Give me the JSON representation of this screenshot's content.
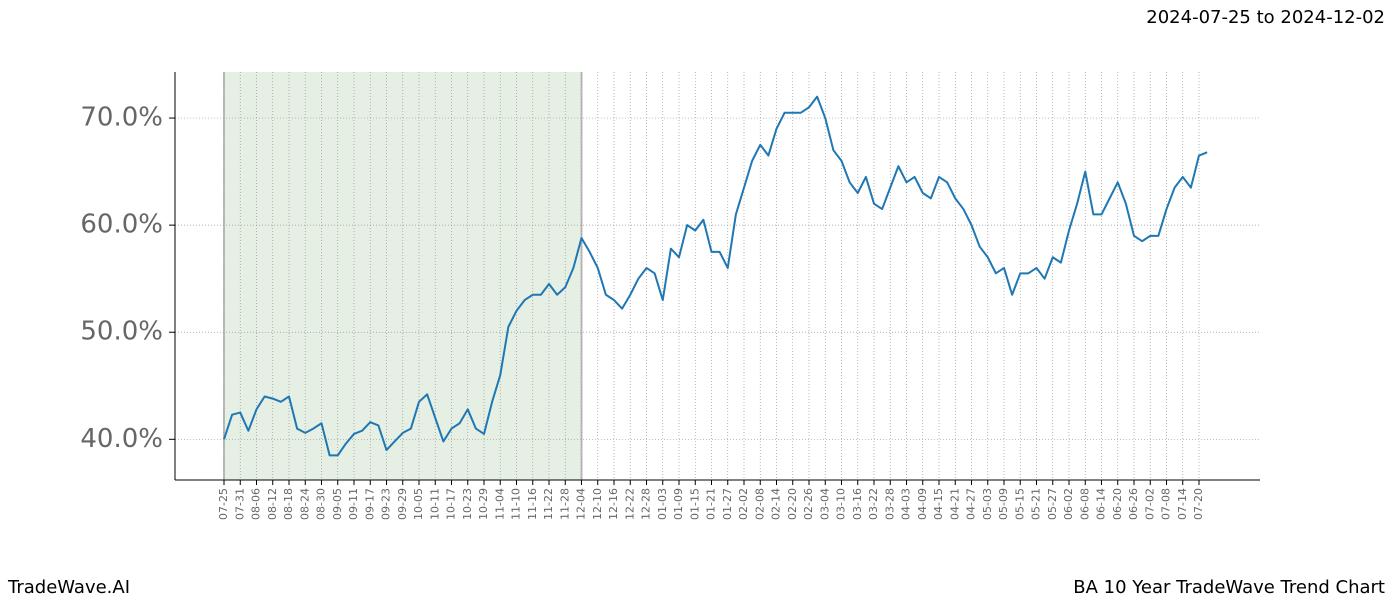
{
  "chart_data": {
    "type": "line",
    "title": "BA 10 Year TradeWave Trend Chart",
    "subtitle": "2024-07-25 to 2024-12-02",
    "brand": "TradeWave.AI",
    "categories": [
      "07-25",
      null,
      "07-31",
      null,
      "08-06",
      null,
      "08-12",
      null,
      "08-18",
      null,
      "08-24",
      null,
      "08-30",
      null,
      "09-05",
      null,
      "09-11",
      null,
      "09-17",
      null,
      "09-23",
      null,
      "09-29",
      null,
      "10-05",
      null,
      "10-11",
      null,
      "10-17",
      null,
      "10-23",
      null,
      "10-29",
      null,
      "11-04",
      null,
      "11-10",
      null,
      "11-16",
      null,
      "11-22",
      null,
      "11-28",
      null,
      "12-04",
      null,
      "12-10",
      null,
      "12-16",
      null,
      "12-22",
      null,
      "12-28",
      null,
      "01-03",
      null,
      "01-09",
      null,
      "01-15",
      null,
      "01-21",
      null,
      "01-27",
      null,
      "02-02",
      null,
      "02-08",
      null,
      "02-14",
      null,
      "02-20",
      null,
      "02-26",
      null,
      "03-04",
      null,
      "03-10",
      null,
      "03-16",
      null,
      "03-22",
      null,
      "03-28",
      null,
      "04-03",
      null,
      "04-09",
      null,
      "04-15",
      null,
      "04-21",
      null,
      "04-27",
      null,
      "05-03",
      null,
      "05-09",
      null,
      "05-15",
      null,
      "05-21",
      null,
      "05-27",
      null,
      "06-02",
      null,
      "06-08",
      null,
      "06-14",
      null,
      "06-20",
      null,
      "06-26",
      null,
      "07-02",
      null,
      "07-08",
      null,
      "07-14",
      null,
      "07-20",
      null
    ],
    "values": [
      40.0,
      42.3,
      42.5,
      40.8,
      42.8,
      44.0,
      43.8,
      43.5,
      44.0,
      41.0,
      40.6,
      41.0,
      41.5,
      38.5,
      38.5,
      39.6,
      40.5,
      40.8,
      41.6,
      41.3,
      39.0,
      39.8,
      40.6,
      41.0,
      43.5,
      44.2,
      42.0,
      39.8,
      41.0,
      41.5,
      42.8,
      41.0,
      40.5,
      43.5,
      46.0,
      50.5,
      52.0,
      53.0,
      53.5,
      53.5,
      54.5,
      53.5,
      54.2,
      56.0,
      58.8,
      57.5,
      56.0,
      53.5,
      53.0,
      52.2,
      53.5,
      55.0,
      56.0,
      55.5,
      53.0,
      57.8,
      57.0,
      60.0,
      59.5,
      60.5,
      57.5,
      57.5,
      56.0,
      61.0,
      63.5,
      66.0,
      67.5,
      66.5,
      69.0,
      70.5,
      70.5,
      70.5,
      71.0,
      72.0,
      70.0,
      67.0,
      66.0,
      64.0,
      63.0,
      64.5,
      62.0,
      61.5,
      63.5,
      65.5,
      64.0,
      64.5,
      63.0,
      62.5,
      64.5,
      64.0,
      62.5,
      61.5,
      60.0,
      58.0,
      57.0,
      55.5,
      56.0,
      53.5,
      55.5,
      55.5,
      56.0,
      55.0,
      57.0,
      56.5,
      59.5,
      62.0,
      65.0,
      61.0,
      61.0,
      62.5,
      64.0,
      62.0,
      59.0,
      58.5,
      59.0,
      59.0,
      61.5,
      63.5,
      64.5,
      63.5,
      66.5,
      66.8
    ],
    "color": "#1f77b4",
    "shaded_range": [
      "07-25",
      "12-04"
    ],
    "shade_color": "#e5efe3",
    "ylim": [
      36.2,
      74.3
    ],
    "yticks": [
      {
        "value": 40,
        "label": "40.0%"
      },
      {
        "value": 50,
        "label": "50.0%"
      },
      {
        "value": 60,
        "label": "60.0%"
      },
      {
        "value": 70,
        "label": "70.0%"
      }
    ],
    "grid": true
  }
}
